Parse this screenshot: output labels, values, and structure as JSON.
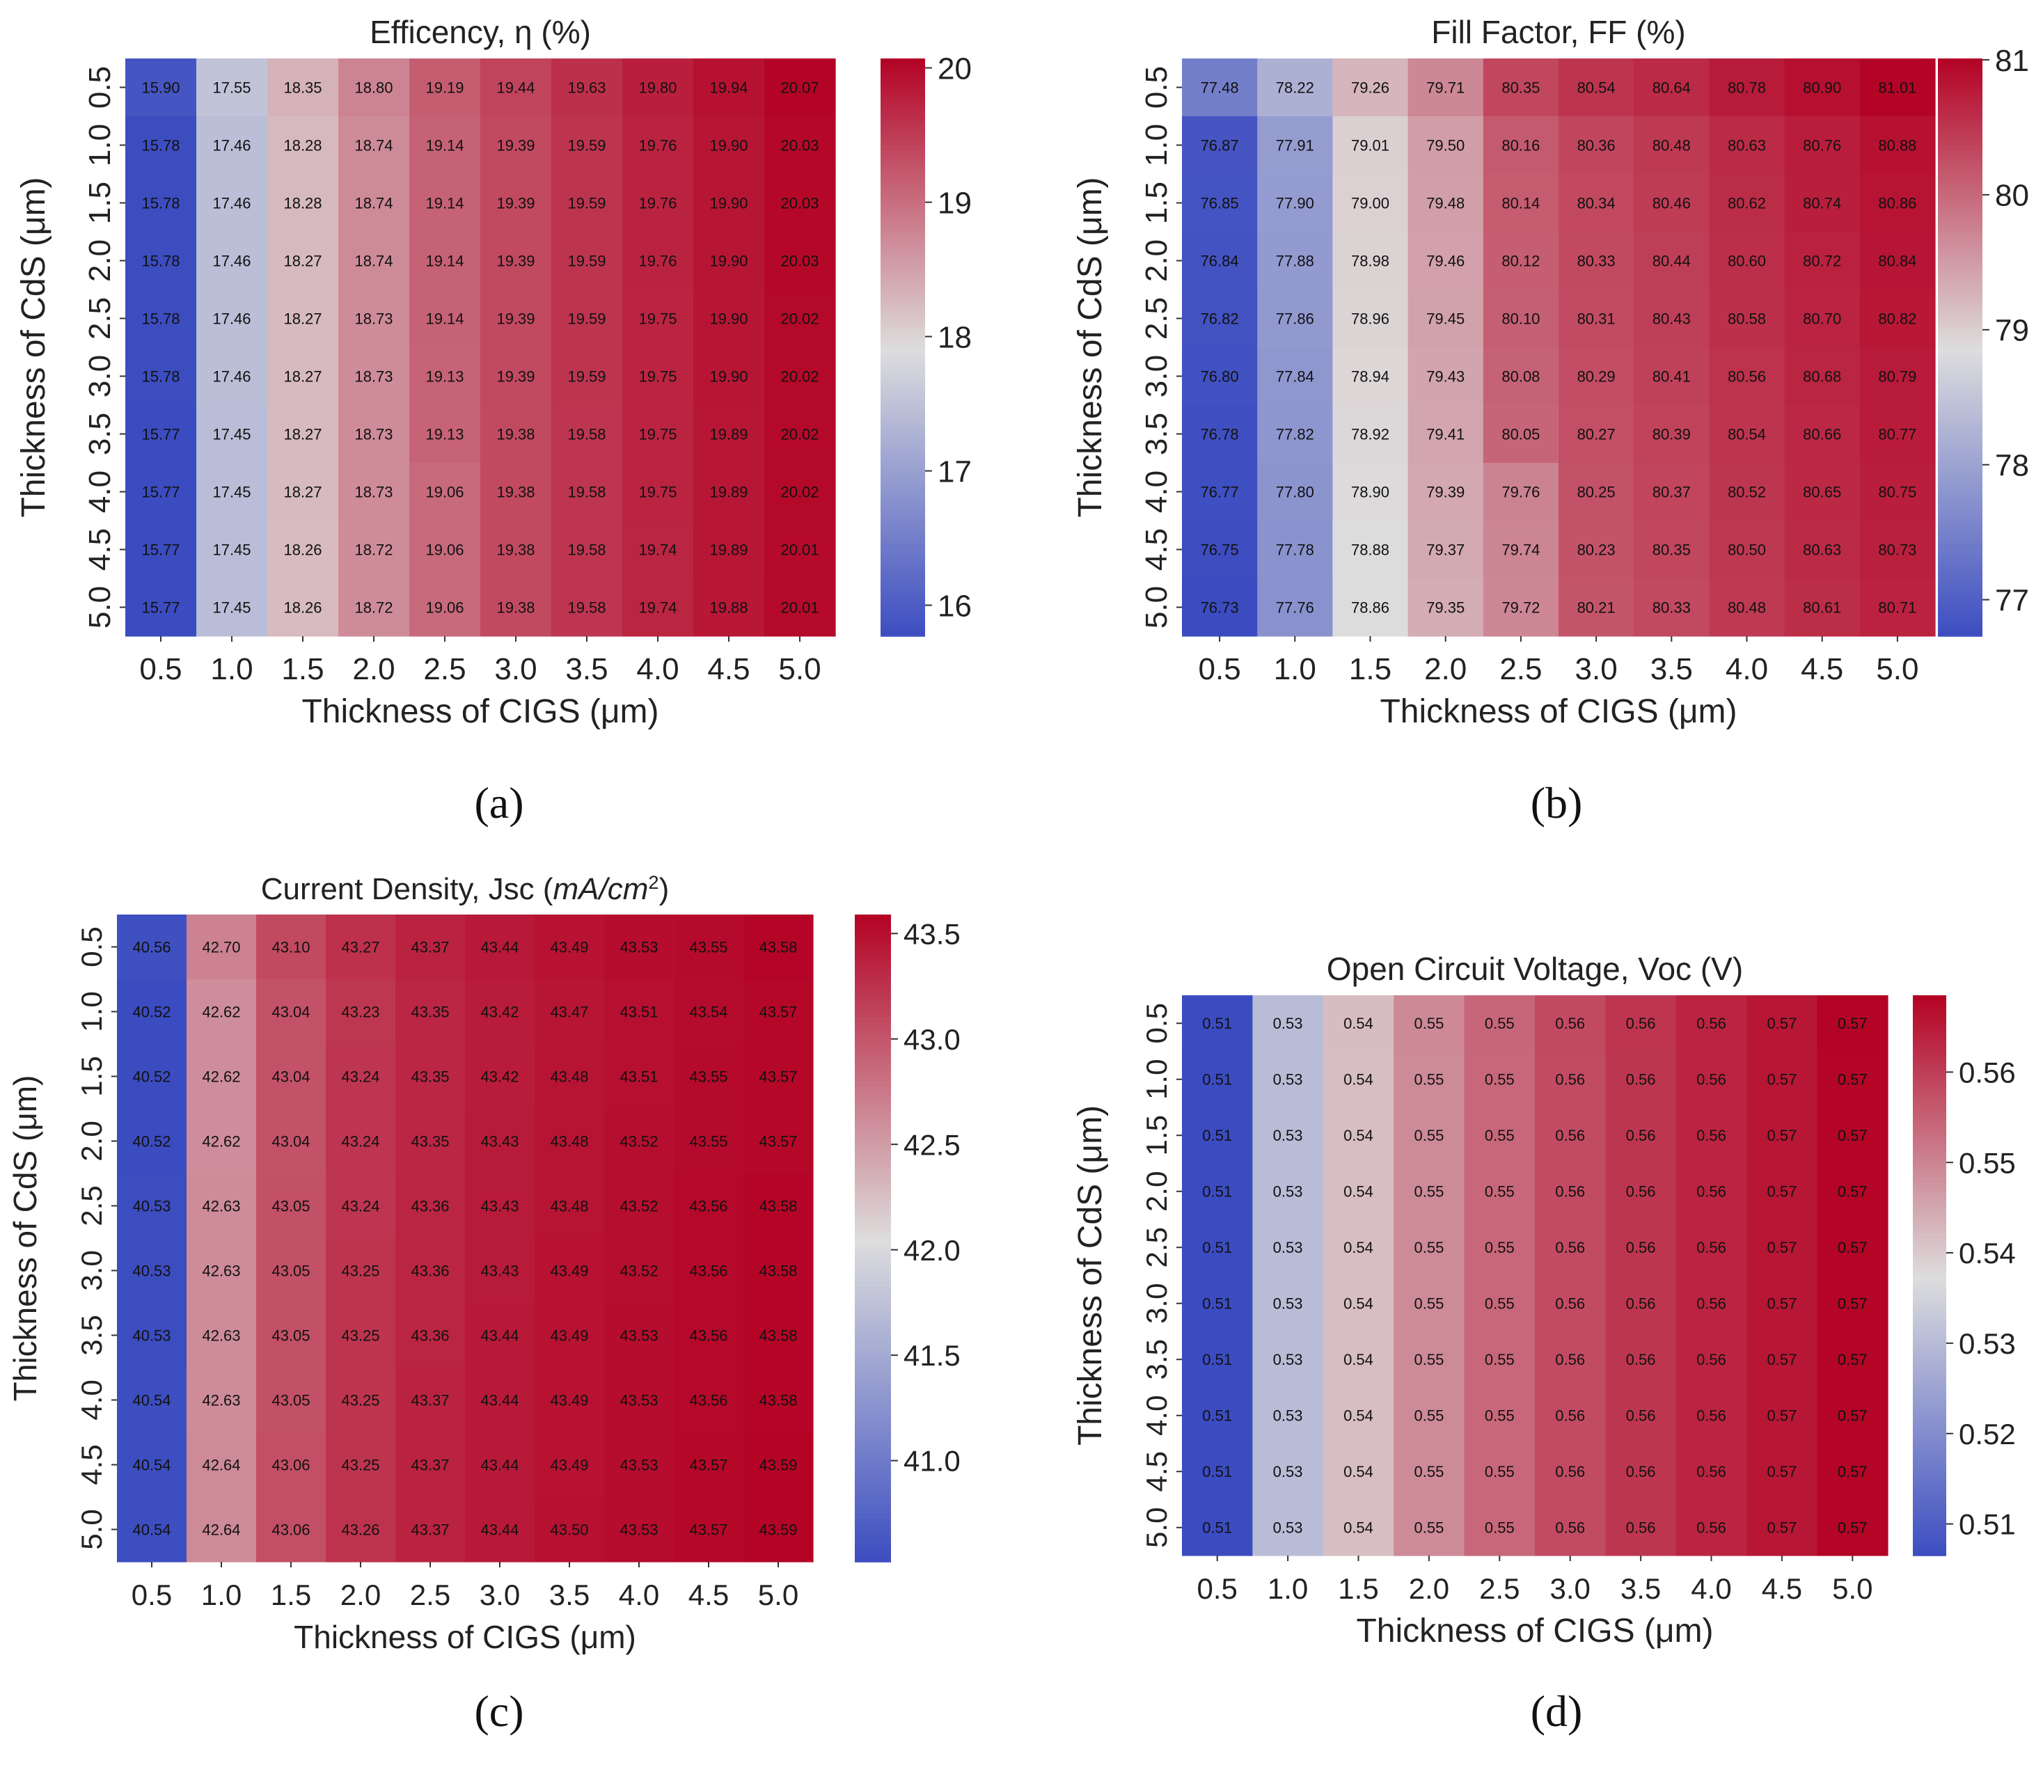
{
  "figure": {
    "panel_labels": [
      "(a)",
      "(b)",
      "(c)",
      "(d)"
    ]
  },
  "colormap": {
    "name": "coolwarm",
    "low": "#3b4cc0",
    "mid": "#dddddd",
    "high": "#b40426"
  },
  "chart_data": [
    {
      "type": "heatmap",
      "id": "a",
      "title": "Efficency, η (%)",
      "title_parts": [
        {
          "t": "Efficency, η (%)"
        }
      ],
      "xlabel": "Thickness of CIGS (μm)",
      "ylabel": "Thickness of CdS (μm)",
      "x_ticks": [
        "0.5",
        "1.0",
        "1.5",
        "2.0",
        "2.5",
        "3.0",
        "3.5",
        "4.0",
        "4.5",
        "5.0"
      ],
      "y_ticks": [
        "0.5",
        "1.0",
        "1.5",
        "2.0",
        "2.5",
        "3.0",
        "3.5",
        "4.0",
        "4.5",
        "5.0"
      ],
      "values": [
        [
          15.9,
          17.55,
          18.35,
          18.8,
          19.19,
          19.44,
          19.63,
          19.8,
          19.94,
          20.07
        ],
        [
          15.78,
          17.46,
          18.28,
          18.74,
          19.14,
          19.39,
          19.59,
          19.76,
          19.9,
          20.03
        ],
        [
          15.78,
          17.46,
          18.28,
          18.74,
          19.14,
          19.39,
          19.59,
          19.76,
          19.9,
          20.03
        ],
        [
          15.78,
          17.46,
          18.27,
          18.74,
          19.14,
          19.39,
          19.59,
          19.76,
          19.9,
          20.03
        ],
        [
          15.78,
          17.46,
          18.27,
          18.73,
          19.14,
          19.39,
          19.59,
          19.75,
          19.9,
          20.02
        ],
        [
          15.78,
          17.46,
          18.27,
          18.73,
          19.13,
          19.39,
          19.59,
          19.75,
          19.9,
          20.02
        ],
        [
          15.77,
          17.45,
          18.27,
          18.73,
          19.13,
          19.38,
          19.58,
          19.75,
          19.89,
          20.02
        ],
        [
          15.77,
          17.45,
          18.27,
          18.73,
          19.06,
          19.38,
          19.58,
          19.75,
          19.89,
          20.02
        ],
        [
          15.77,
          17.45,
          18.26,
          18.72,
          19.06,
          19.38,
          19.58,
          19.74,
          19.89,
          20.01
        ],
        [
          15.77,
          17.45,
          18.26,
          18.72,
          19.06,
          19.38,
          19.58,
          19.74,
          19.88,
          20.01
        ]
      ],
      "decimals": 2,
      "vmin": 15.77,
      "vmax": 20.07,
      "colorbar_ticks": [
        "16",
        "17",
        "18",
        "19",
        "20"
      ]
    },
    {
      "type": "heatmap",
      "id": "b",
      "title": "Fill Factor, FF (%)",
      "title_parts": [
        {
          "t": "Fill Factor, FF (%)"
        }
      ],
      "xlabel": "Thickness of CIGS (μm)",
      "ylabel": "Thickness of CdS (μm)",
      "x_ticks": [
        "0.5",
        "1.0",
        "1.5",
        "2.0",
        "2.5",
        "3.0",
        "3.5",
        "4.0",
        "4.5",
        "5.0"
      ],
      "y_ticks": [
        "0.5",
        "1.0",
        "1.5",
        "2.0",
        "2.5",
        "3.0",
        "3.5",
        "4.0",
        "4.5",
        "5.0"
      ],
      "values": [
        [
          77.48,
          78.22,
          79.26,
          79.71,
          80.35,
          80.54,
          80.64,
          80.78,
          80.9,
          81.01
        ],
        [
          76.87,
          77.91,
          79.01,
          79.5,
          80.16,
          80.36,
          80.48,
          80.63,
          80.76,
          80.88
        ],
        [
          76.85,
          77.9,
          79.0,
          79.48,
          80.14,
          80.34,
          80.46,
          80.62,
          80.74,
          80.86
        ],
        [
          76.84,
          77.88,
          78.98,
          79.46,
          80.12,
          80.33,
          80.44,
          80.6,
          80.72,
          80.84
        ],
        [
          76.82,
          77.86,
          78.96,
          79.45,
          80.1,
          80.31,
          80.43,
          80.58,
          80.7,
          80.82
        ],
        [
          76.8,
          77.84,
          78.94,
          79.43,
          80.08,
          80.29,
          80.41,
          80.56,
          80.68,
          80.79
        ],
        [
          76.78,
          77.82,
          78.92,
          79.41,
          80.05,
          80.27,
          80.39,
          80.54,
          80.66,
          80.77
        ],
        [
          76.77,
          77.8,
          78.9,
          79.39,
          79.76,
          80.25,
          80.37,
          80.52,
          80.65,
          80.75
        ],
        [
          76.75,
          77.78,
          78.88,
          79.37,
          79.74,
          80.23,
          80.35,
          80.5,
          80.63,
          80.73
        ],
        [
          76.73,
          77.76,
          78.86,
          79.35,
          79.72,
          80.21,
          80.33,
          80.48,
          80.61,
          80.71
        ]
      ],
      "decimals": 2,
      "vmin": 76.73,
      "vmax": 81.01,
      "colorbar_ticks": [
        "77",
        "78",
        "79",
        "80",
        "81"
      ]
    },
    {
      "type": "heatmap",
      "id": "c",
      "title": "Current Density, Jsc (mA/cm2)",
      "title_parts": [
        {
          "t": "Current Density, Jsc ("
        },
        {
          "t": "mA/cm",
          "italic": true
        },
        {
          "t": "2",
          "sup": true
        },
        {
          "t": ")"
        }
      ],
      "xlabel": "Thickness of CIGS (μm)",
      "ylabel": "Thickness of CdS (μm)",
      "x_ticks": [
        "0.5",
        "1.0",
        "1.5",
        "2.0",
        "2.5",
        "3.0",
        "3.5",
        "4.0",
        "4.5",
        "5.0"
      ],
      "y_ticks": [
        "0.5",
        "1.0",
        "1.5",
        "2.0",
        "2.5",
        "3.0",
        "3.5",
        "4.0",
        "4.5",
        "5.0"
      ],
      "values": [
        [
          40.56,
          42.7,
          43.1,
          43.27,
          43.37,
          43.44,
          43.49,
          43.53,
          43.55,
          43.58
        ],
        [
          40.52,
          42.62,
          43.04,
          43.23,
          43.35,
          43.42,
          43.47,
          43.51,
          43.54,
          43.57
        ],
        [
          40.52,
          42.62,
          43.04,
          43.24,
          43.35,
          43.42,
          43.48,
          43.51,
          43.55,
          43.57
        ],
        [
          40.52,
          42.62,
          43.04,
          43.24,
          43.35,
          43.43,
          43.48,
          43.52,
          43.55,
          43.57
        ],
        [
          40.53,
          42.63,
          43.05,
          43.24,
          43.36,
          43.43,
          43.48,
          43.52,
          43.56,
          43.58
        ],
        [
          40.53,
          42.63,
          43.05,
          43.25,
          43.36,
          43.43,
          43.49,
          43.52,
          43.56,
          43.58
        ],
        [
          40.53,
          42.63,
          43.05,
          43.25,
          43.36,
          43.44,
          43.49,
          43.53,
          43.56,
          43.58
        ],
        [
          40.54,
          42.63,
          43.05,
          43.25,
          43.37,
          43.44,
          43.49,
          43.53,
          43.56,
          43.58
        ],
        [
          40.54,
          42.64,
          43.06,
          43.25,
          43.37,
          43.44,
          43.49,
          43.53,
          43.57,
          43.59
        ],
        [
          40.54,
          42.64,
          43.06,
          43.26,
          43.37,
          43.44,
          43.5,
          43.53,
          43.57,
          43.59
        ]
      ],
      "decimals": 2,
      "vmin": 40.52,
      "vmax": 43.59,
      "colorbar_ticks": [
        "41.0",
        "41.5",
        "42.0",
        "42.5",
        "43.0",
        "43.5"
      ]
    },
    {
      "type": "heatmap",
      "id": "d",
      "title": "Open Circuit Voltage, Voc (V)",
      "title_parts": [
        {
          "t": "Open Circuit Voltage, Voc (V)"
        }
      ],
      "xlabel": "Thickness of CIGS (μm)",
      "ylabel": "Thickness of CdS (μm)",
      "x_ticks": [
        "0.5",
        "1.0",
        "1.5",
        "2.0",
        "2.5",
        "3.0",
        "3.5",
        "4.0",
        "4.5",
        "5.0"
      ],
      "y_ticks": [
        "0.5",
        "1.0",
        "1.5",
        "2.0",
        "2.5",
        "3.0",
        "3.5",
        "4.0",
        "4.5",
        "5.0"
      ],
      "values": [
        [
          0.5066,
          0.5305,
          0.542,
          0.5495,
          0.5545,
          0.5585,
          0.5615,
          0.564,
          0.566,
          0.5685
        ],
        [
          0.5065,
          0.5304,
          0.5419,
          0.5494,
          0.5544,
          0.5584,
          0.5614,
          0.5639,
          0.5659,
          0.5684
        ],
        [
          0.5065,
          0.5304,
          0.5419,
          0.5494,
          0.5544,
          0.5584,
          0.5614,
          0.5639,
          0.5659,
          0.5684
        ],
        [
          0.5065,
          0.5304,
          0.5419,
          0.5494,
          0.5544,
          0.5584,
          0.5614,
          0.5639,
          0.5659,
          0.5684
        ],
        [
          0.5065,
          0.5304,
          0.5419,
          0.5494,
          0.5544,
          0.5584,
          0.5614,
          0.5639,
          0.5659,
          0.5684
        ],
        [
          0.5065,
          0.5304,
          0.5419,
          0.5494,
          0.5544,
          0.5584,
          0.5614,
          0.5639,
          0.5659,
          0.5684
        ],
        [
          0.5065,
          0.5304,
          0.5419,
          0.5494,
          0.5544,
          0.5584,
          0.5614,
          0.5639,
          0.5659,
          0.5684
        ],
        [
          0.5065,
          0.5304,
          0.5419,
          0.5494,
          0.5544,
          0.5584,
          0.5614,
          0.5639,
          0.5659,
          0.5684
        ],
        [
          0.5065,
          0.5304,
          0.5419,
          0.5494,
          0.5544,
          0.5584,
          0.5614,
          0.5639,
          0.5659,
          0.5684
        ],
        [
          0.5065,
          0.5304,
          0.5419,
          0.5494,
          0.5544,
          0.5584,
          0.5614,
          0.5639,
          0.5659,
          0.5684
        ]
      ],
      "decimals": 2,
      "vmin": 0.5065,
      "vmax": 0.5685,
      "colorbar_ticks": [
        "0.51",
        "0.52",
        "0.53",
        "0.54",
        "0.55",
        "0.56"
      ]
    }
  ]
}
